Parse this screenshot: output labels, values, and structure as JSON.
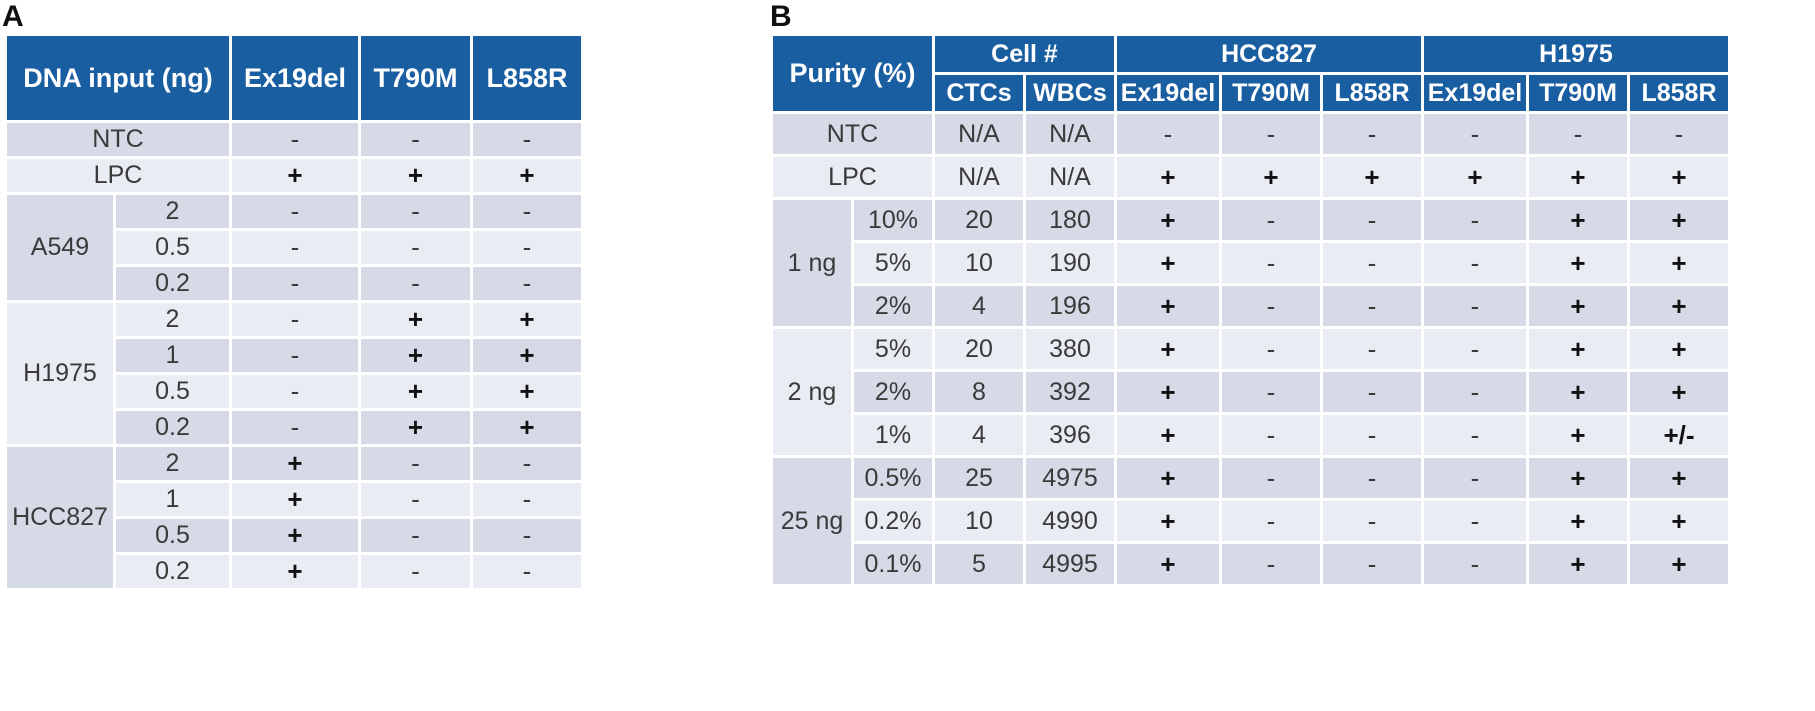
{
  "panel_a": {
    "label": "A",
    "headers": [
      "DNA input (ng)",
      "Ex19del",
      "T790M",
      "L858R"
    ],
    "control_rows": [
      {
        "label": "NTC",
        "values": [
          "-",
          "-",
          "-"
        ]
      },
      {
        "label": "LPC",
        "values": [
          "+",
          "+",
          "+"
        ]
      }
    ],
    "groups": [
      {
        "name": "A549",
        "rows": [
          {
            "input": "2",
            "values": [
              "-",
              "-",
              "-"
            ]
          },
          {
            "input": "0.5",
            "values": [
              "-",
              "-",
              "-"
            ]
          },
          {
            "input": "0.2",
            "values": [
              "-",
              "-",
              "-"
            ]
          }
        ]
      },
      {
        "name": "H1975",
        "rows": [
          {
            "input": "2",
            "values": [
              "-",
              "+",
              "+"
            ]
          },
          {
            "input": "1",
            "values": [
              "-",
              "+",
              "+"
            ]
          },
          {
            "input": "0.5",
            "values": [
              "-",
              "+",
              "+"
            ]
          },
          {
            "input": "0.2",
            "values": [
              "-",
              "+",
              "+"
            ]
          }
        ]
      },
      {
        "name": "HCC827",
        "rows": [
          {
            "input": "2",
            "values": [
              "+",
              "-",
              "-"
            ]
          },
          {
            "input": "1",
            "values": [
              "+",
              "-",
              "-"
            ]
          },
          {
            "input": "0.5",
            "values": [
              "+",
              "-",
              "-"
            ]
          },
          {
            "input": "0.2",
            "values": [
              "+",
              "-",
              "-"
            ]
          }
        ]
      }
    ]
  },
  "panel_b": {
    "label": "B",
    "purity_header": "Purity (%)",
    "cell_header": "Cell #",
    "cell_sub": [
      "CTCs",
      "WBCs"
    ],
    "line_headers": [
      "HCC827",
      "H1975"
    ],
    "mutation_sub": [
      "Ex19del",
      "T790M",
      "L858R",
      "Ex19del",
      "T790M",
      "L858R"
    ],
    "control_rows": [
      {
        "label": "NTC",
        "ctcs": "N/A",
        "wbcs": "N/A",
        "values": [
          "-",
          "-",
          "-",
          "-",
          "-",
          "-"
        ]
      },
      {
        "label": "LPC",
        "ctcs": "N/A",
        "wbcs": "N/A",
        "values": [
          "+",
          "+",
          "+",
          "+",
          "+",
          "+"
        ]
      }
    ],
    "groups": [
      {
        "name": "1 ng",
        "rows": [
          {
            "purity": "10%",
            "ctcs": "20",
            "wbcs": "180",
            "values": [
              "+",
              "-",
              "-",
              "-",
              "+",
              "+"
            ]
          },
          {
            "purity": "5%",
            "ctcs": "10",
            "wbcs": "190",
            "values": [
              "+",
              "-",
              "-",
              "-",
              "+",
              "+"
            ]
          },
          {
            "purity": "2%",
            "ctcs": "4",
            "wbcs": "196",
            "values": [
              "+",
              "-",
              "-",
              "-",
              "+",
              "+"
            ]
          }
        ]
      },
      {
        "name": "2 ng",
        "rows": [
          {
            "purity": "5%",
            "ctcs": "20",
            "wbcs": "380",
            "values": [
              "+",
              "-",
              "-",
              "-",
              "+",
              "+"
            ]
          },
          {
            "purity": "2%",
            "ctcs": "8",
            "wbcs": "392",
            "values": [
              "+",
              "-",
              "-",
              "-",
              "+",
              "+"
            ]
          },
          {
            "purity": "1%",
            "ctcs": "4",
            "wbcs": "396",
            "values": [
              "+",
              "-",
              "-",
              "-",
              "+",
              "+/-"
            ]
          }
        ]
      },
      {
        "name": "25 ng",
        "rows": [
          {
            "purity": "0.5%",
            "ctcs": "25",
            "wbcs": "4975",
            "values": [
              "+",
              "-",
              "-",
              "-",
              "+",
              "+"
            ]
          },
          {
            "purity": "0.2%",
            "ctcs": "10",
            "wbcs": "4990",
            "values": [
              "+",
              "-",
              "-",
              "-",
              "+",
              "+"
            ]
          },
          {
            "purity": "0.1%",
            "ctcs": "5",
            "wbcs": "4995",
            "values": [
              "+",
              "-",
              "-",
              "-",
              "+",
              "+"
            ]
          }
        ]
      }
    ]
  },
  "colors": {
    "header_bg": "#1a5ea2",
    "header_text": "#ffffff",
    "row_dark": "#d5dae6",
    "row_light": "#e9ecf3"
  }
}
